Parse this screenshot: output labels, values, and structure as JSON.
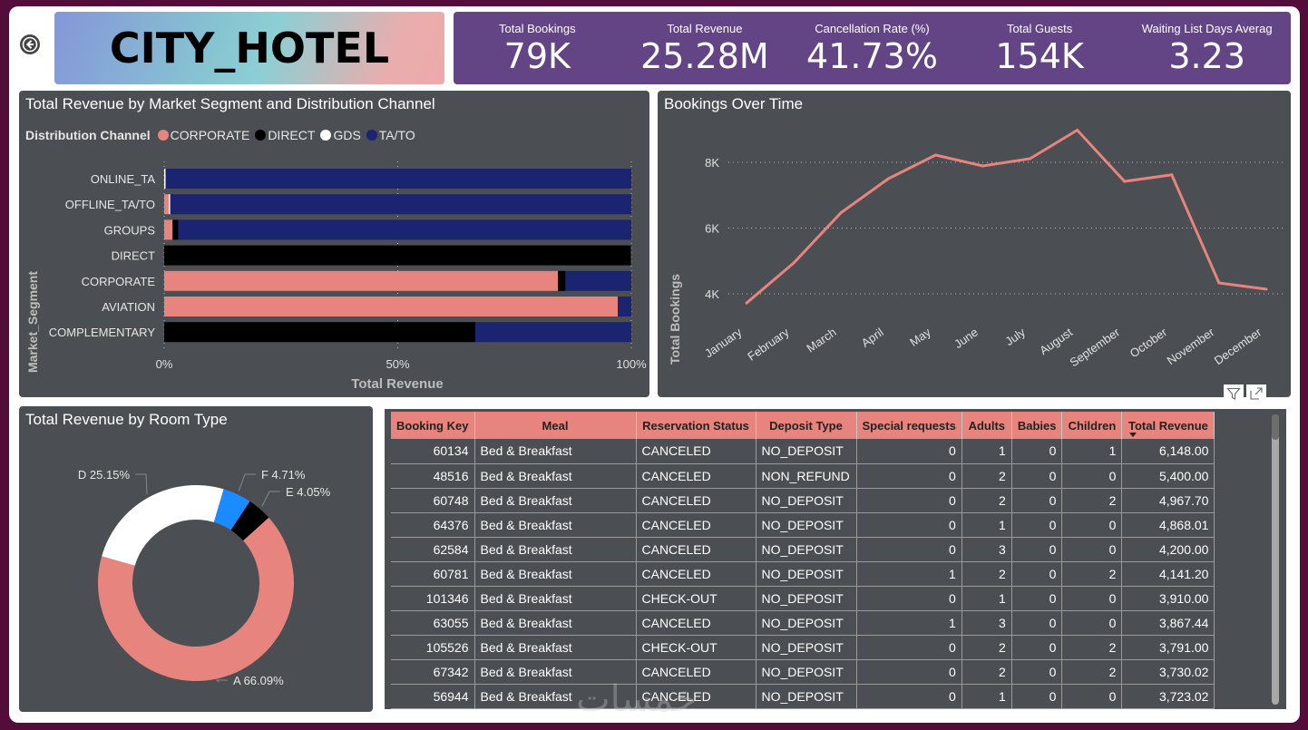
{
  "header": {
    "title": "CITY_HOTEL",
    "back_icon": "back-arrow-circle-icon"
  },
  "kpis": [
    {
      "label": "Total Bookings",
      "value": "79K"
    },
    {
      "label": "Total Revenue",
      "value": "25.28M"
    },
    {
      "label": "Cancellation Rate (%)",
      "value": "41.73%"
    },
    {
      "label": "Total Guests",
      "value": "154K"
    },
    {
      "label": "Waiting List Days Averag",
      "value": "3.23"
    }
  ],
  "colors": {
    "corporate": "#e8847e",
    "direct": "#000000",
    "gds": "#ffffff",
    "ta_to": "#1b2470",
    "room_A": "#e8847e",
    "room_D": "#ffffff",
    "room_F": "#1a8cff",
    "room_E": "#000000",
    "kpi_bg": "#634585",
    "panel_bg": "#4b4e52",
    "frame": "#540d3a"
  },
  "visual_actions": {
    "filter_icon": "filter-icon",
    "focus_icon": "focus-mode-icon",
    "more_label": "···"
  },
  "chart_data": [
    {
      "type": "bar",
      "orientation": "horizontal-100%-stacked",
      "title": "Total Revenue by Market Segment and Distribution Channel",
      "legend_title": "Distribution Channel",
      "legend_position": "top-left",
      "xlabel": "Total Revenue",
      "ylabel": "Market_Segment",
      "x_ticks": [
        "0%",
        "50%",
        "100%"
      ],
      "xlim": [
        0,
        100
      ],
      "grid": true,
      "categories": [
        "ONLINE_TA",
        "OFFLINE_TA/TO",
        "GROUPS",
        "DIRECT",
        "CORPORATE",
        "AVIATION",
        "COMPLEMENTARY"
      ],
      "series": [
        {
          "name": "CORPORATE",
          "color_key": "corporate",
          "values": [
            0,
            1.0,
            1.8,
            0,
            84.3,
            97.1,
            0
          ]
        },
        {
          "name": "DIRECT",
          "color_key": "direct",
          "values": [
            0,
            0,
            1.2,
            99.8,
            1.6,
            0,
            66.6
          ]
        },
        {
          "name": "GDS",
          "color_key": "gds",
          "values": [
            0.3,
            0.3,
            0,
            0,
            0,
            0,
            0
          ]
        },
        {
          "name": "TA/TO",
          "color_key": "ta_to",
          "values": [
            99.7,
            98.7,
            97.0,
            0.2,
            14.1,
            2.9,
            33.4
          ]
        }
      ]
    },
    {
      "type": "line",
      "title": "Bookings Over Time",
      "xlabel": "",
      "ylabel": "Total Bookings",
      "categories": [
        "January",
        "February",
        "March",
        "April",
        "May",
        "June",
        "July",
        "August",
        "September",
        "October",
        "November",
        "December"
      ],
      "series": [
        {
          "name": "Total Bookings",
          "values": [
            3720,
            4940,
            6470,
            7500,
            8220,
            7890,
            8110,
            8980,
            7420,
            7620,
            4330,
            4140
          ]
        }
      ],
      "y_ticks": [
        4000,
        6000,
        8000
      ],
      "y_tick_labels": [
        "4K",
        "6K",
        "8K"
      ],
      "ylim": [
        3000,
        9500
      ],
      "grid": true
    },
    {
      "type": "pie",
      "variant": "donut",
      "title": "Total Revenue by Room Type",
      "slices": [
        {
          "label": "A",
          "value": 66.09,
          "display": "A 66.09%",
          "color_key": "room_A"
        },
        {
          "label": "D",
          "value": 25.15,
          "display": "D 25.15%",
          "color_key": "room_D"
        },
        {
          "label": "F",
          "value": 4.71,
          "display": "F 4.71%",
          "color_key": "room_F"
        },
        {
          "label": "E",
          "value": 4.05,
          "display": "E 4.05%",
          "color_key": "room_E"
        }
      ]
    }
  ],
  "table": {
    "columns": [
      "Booking Key",
      "Meal",
      "Reservation Status",
      "Deposit Type",
      "Special requests",
      "Adults",
      "Babies",
      "Children",
      "Total Revenue"
    ],
    "sorted_column": "Total Revenue",
    "sort_direction": "descending",
    "rows": [
      [
        "60134",
        "Bed & Breakfast",
        "CANCELED",
        "NO_DEPOSIT",
        "0",
        "1",
        "0",
        "1",
        "6,148.00"
      ],
      [
        "48516",
        "Bed & Breakfast",
        "CANCELED",
        "NON_REFUND",
        "0",
        "2",
        "0",
        "0",
        "5,400.00"
      ],
      [
        "60748",
        "Bed & Breakfast",
        "CANCELED",
        "NO_DEPOSIT",
        "0",
        "2",
        "0",
        "2",
        "4,967.70"
      ],
      [
        "64376",
        "Bed & Breakfast",
        "CANCELED",
        "NO_DEPOSIT",
        "0",
        "1",
        "0",
        "0",
        "4,868.01"
      ],
      [
        "62584",
        "Bed & Breakfast",
        "CANCELED",
        "NO_DEPOSIT",
        "0",
        "3",
        "0",
        "0",
        "4,200.00"
      ],
      [
        "60781",
        "Bed & Breakfast",
        "CANCELED",
        "NO_DEPOSIT",
        "1",
        "2",
        "0",
        "2",
        "4,141.20"
      ],
      [
        "101346",
        "Bed & Breakfast",
        "CHECK-OUT",
        "NO_DEPOSIT",
        "0",
        "1",
        "0",
        "0",
        "3,910.00"
      ],
      [
        "63055",
        "Bed & Breakfast",
        "CANCELED",
        "NO_DEPOSIT",
        "1",
        "3",
        "0",
        "0",
        "3,867.44"
      ],
      [
        "105526",
        "Bed & Breakfast",
        "CHECK-OUT",
        "NO_DEPOSIT",
        "0",
        "2",
        "0",
        "2",
        "3,791.00"
      ],
      [
        "67342",
        "Bed & Breakfast",
        "CANCELED",
        "NO_DEPOSIT",
        "0",
        "2",
        "0",
        "2",
        "3,730.02"
      ],
      [
        "56944",
        "Bed & Breakfast",
        "CANCELED",
        "NO_DEPOSIT",
        "0",
        "1",
        "0",
        "0",
        "3,723.02"
      ]
    ]
  },
  "watermark": "خمسات"
}
